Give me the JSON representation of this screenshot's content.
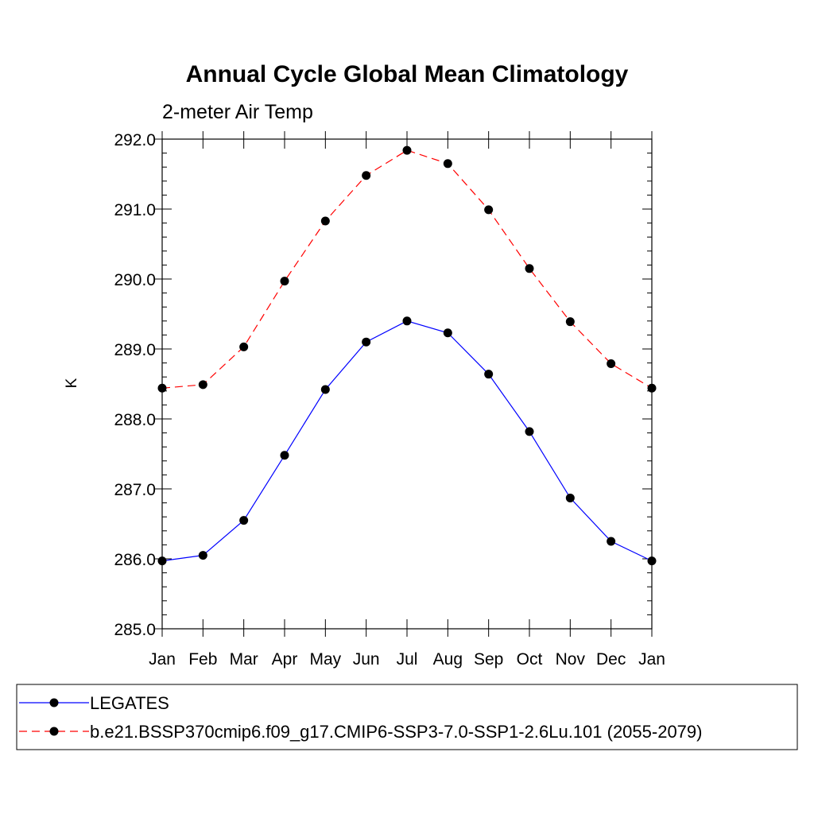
{
  "chart_data": {
    "type": "line",
    "title": "Annual Cycle Global Mean Climatology",
    "subtitle": "2-meter Air Temp",
    "xlabel": "",
    "ylabel": "K",
    "categories": [
      "Jan",
      "Feb",
      "Mar",
      "Apr",
      "May",
      "Jun",
      "Jul",
      "Aug",
      "Sep",
      "Oct",
      "Nov",
      "Dec",
      "Jan"
    ],
    "ylim": [
      285.0,
      292.0
    ],
    "yticks": [
      "285.0",
      "286.0",
      "287.0",
      "288.0",
      "289.0",
      "290.0",
      "291.0",
      "292.0"
    ],
    "grid": false,
    "legend_position": "bottom",
    "series": [
      {
        "name": "LEGATES",
        "color": "#0000ff",
        "style": "solid",
        "marker": "filled-circle",
        "values": [
          285.97,
          286.05,
          286.55,
          287.48,
          288.42,
          289.1,
          289.4,
          289.23,
          288.64,
          287.82,
          286.87,
          286.25,
          285.97
        ]
      },
      {
        "name": "b.e21.BSSP370cmip6.f09_g17.CMIP6-SSP3-7.0-SSP1-2.6Lu.101 (2055-2079)",
        "color": "#ff0000",
        "style": "dashed",
        "marker": "filled-circle",
        "values": [
          288.44,
          288.49,
          289.03,
          289.97,
          290.83,
          291.48,
          291.84,
          291.65,
          290.99,
          290.15,
          289.39,
          288.79,
          288.44
        ]
      }
    ]
  }
}
